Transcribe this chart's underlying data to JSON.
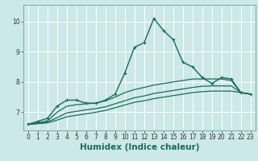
{
  "title": "",
  "xlabel": "Humidex (Indice chaleur)",
  "x_values": [
    0,
    1,
    2,
    3,
    4,
    5,
    6,
    7,
    8,
    9,
    10,
    11,
    12,
    13,
    14,
    15,
    16,
    17,
    18,
    19,
    20,
    21,
    22,
    23
  ],
  "lines": [
    {
      "y": [
        6.6,
        6.7,
        6.8,
        7.2,
        7.4,
        7.4,
        7.3,
        7.3,
        7.4,
        7.6,
        8.3,
        9.15,
        9.3,
        10.1,
        9.7,
        9.4,
        8.65,
        8.5,
        8.15,
        7.95,
        8.15,
        8.1,
        7.65,
        7.6
      ],
      "color": "#1a6b5a",
      "marker": "+",
      "linewidth": 1.0,
      "markersize": 3.5
    },
    {
      "y": [
        6.6,
        6.65,
        6.72,
        7.0,
        7.2,
        7.25,
        7.28,
        7.3,
        7.38,
        7.5,
        7.65,
        7.75,
        7.82,
        7.9,
        7.95,
        8.0,
        8.05,
        8.1,
        8.1,
        8.1,
        8.1,
        8.05,
        7.65,
        7.6
      ],
      "color": "#1a6b5a",
      "marker": null,
      "linewidth": 0.9,
      "markersize": 0
    },
    {
      "y": [
        6.6,
        6.63,
        6.68,
        6.82,
        6.98,
        7.03,
        7.08,
        7.12,
        7.18,
        7.28,
        7.38,
        7.48,
        7.54,
        7.62,
        7.67,
        7.72,
        7.77,
        7.82,
        7.86,
        7.87,
        7.87,
        7.87,
        7.65,
        7.6
      ],
      "color": "#1a6b5a",
      "marker": null,
      "linewidth": 0.9,
      "markersize": 0
    },
    {
      "y": [
        6.6,
        6.62,
        6.65,
        6.74,
        6.85,
        6.9,
        6.95,
        7.0,
        7.06,
        7.15,
        7.24,
        7.33,
        7.38,
        7.45,
        7.5,
        7.55,
        7.6,
        7.65,
        7.68,
        7.7,
        7.7,
        7.7,
        7.65,
        7.6
      ],
      "color": "#1a6b5a",
      "marker": null,
      "linewidth": 0.9,
      "markersize": 0
    }
  ],
  "xlim": [
    -0.5,
    23.5
  ],
  "ylim": [
    6.4,
    10.55
  ],
  "yticks": [
    7,
    8,
    9,
    10
  ],
  "xticks": [
    0,
    1,
    2,
    3,
    4,
    5,
    6,
    7,
    8,
    9,
    10,
    11,
    12,
    13,
    14,
    15,
    16,
    17,
    18,
    19,
    20,
    21,
    22,
    23
  ],
  "bg_color": "#cce8e8",
  "grid_color": "#ffffff",
  "line_color": "#1a6b5a",
  "tick_fontsize": 5.5,
  "label_fontsize": 7.5
}
